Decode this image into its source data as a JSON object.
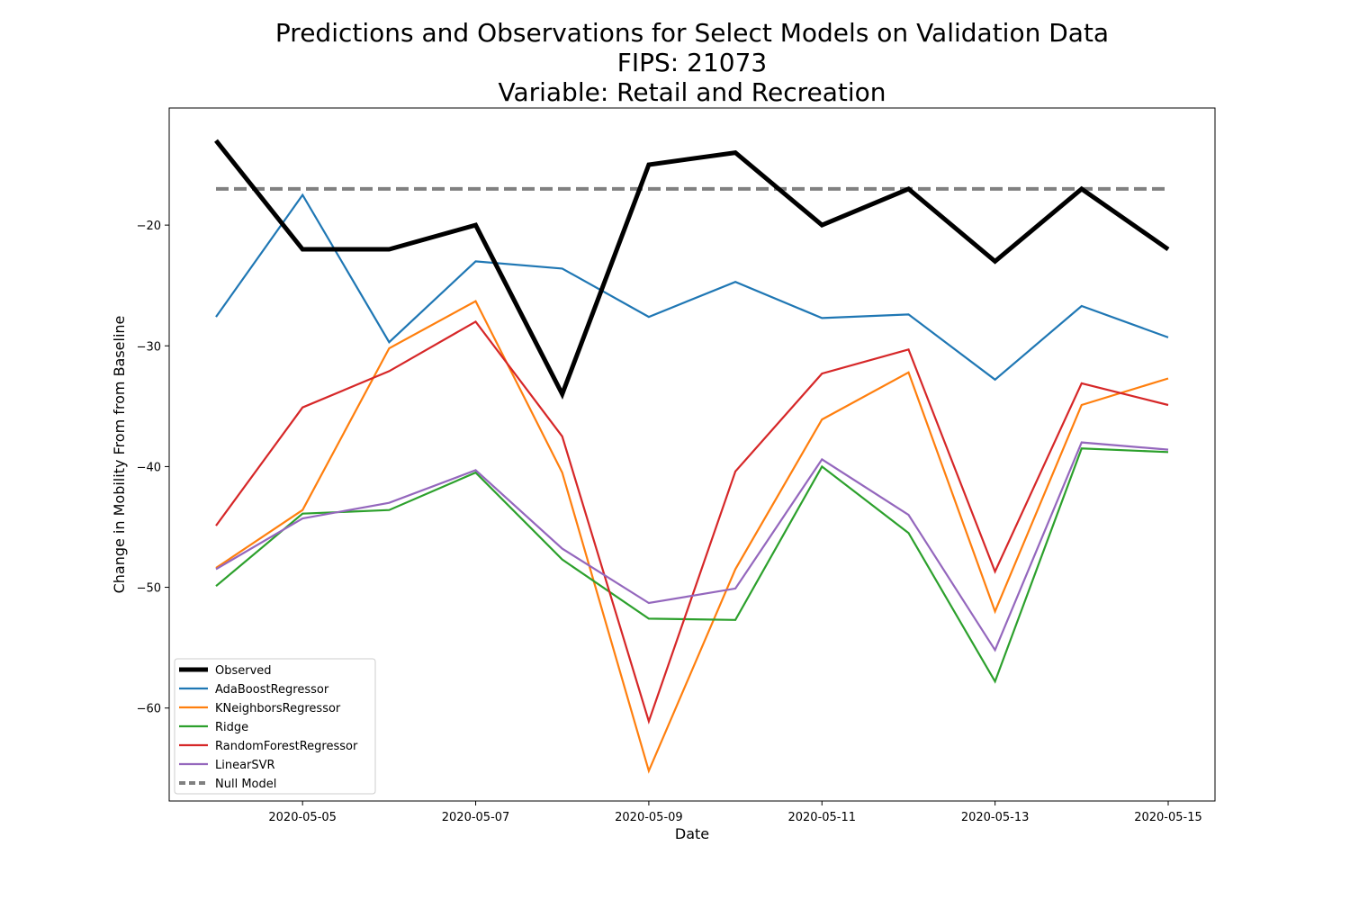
{
  "chart_data": {
    "type": "line",
    "title_lines": [
      "Predictions and Observations for Select Models on Validation Data",
      "FIPS: 21073",
      "Variable: Retail and Recreation"
    ],
    "xlabel": "Date",
    "ylabel": "Change in Mobility From from Baseline",
    "x": [
      "2020-05-04",
      "2020-05-05",
      "2020-05-06",
      "2020-05-07",
      "2020-05-08",
      "2020-05-09",
      "2020-05-10",
      "2020-05-11",
      "2020-05-12",
      "2020-05-13",
      "2020-05-14",
      "2020-05-15"
    ],
    "x_ticks": [
      "2020-05-05",
      "2020-05-07",
      "2020-05-09",
      "2020-05-11",
      "2020-05-13",
      "2020-05-15"
    ],
    "y_ticks": [
      -20,
      -30,
      -40,
      -50,
      -60
    ],
    "ylim": [
      -67.7,
      -10.3
    ],
    "grid": false,
    "legend_position": "lower-left",
    "series": [
      {
        "name": "Observed",
        "color": "#000000",
        "style": "solid-thick",
        "values": [
          -13,
          -22,
          -22,
          -20,
          -34,
          -15,
          -14,
          -20,
          -17,
          -23,
          -17,
          -22
        ]
      },
      {
        "name": "AdaBoostRegressor",
        "color": "#1f77b4",
        "style": "solid",
        "values": [
          -27.6,
          -17.5,
          -29.7,
          -23,
          -23.6,
          -27.6,
          -24.7,
          -27.7,
          -27.4,
          -32.8,
          -26.7,
          -29.3
        ]
      },
      {
        "name": "KNeighborsRegressor",
        "color": "#ff7f0e",
        "style": "solid",
        "values": [
          -48.4,
          -43.6,
          -30.2,
          -26.3,
          -40.5,
          -65.2,
          -48.5,
          -36.1,
          -32.2,
          -52,
          -34.9,
          -32.7
        ]
      },
      {
        "name": "Ridge",
        "color": "#2ca02c",
        "style": "solid",
        "values": [
          -49.9,
          -43.9,
          -43.6,
          -40.5,
          -47.7,
          -52.6,
          -52.7,
          -40,
          -45.5,
          -57.8,
          -38.5,
          -38.8
        ]
      },
      {
        "name": "RandomForestRegressor",
        "color": "#d62728",
        "style": "solid",
        "values": [
          -44.9,
          -35.1,
          -32.1,
          -28,
          -37.5,
          -61.1,
          -40.4,
          -32.3,
          -30.3,
          -48.7,
          -33.1,
          -34.9
        ]
      },
      {
        "name": "LinearSVR",
        "color": "#9467bd",
        "style": "solid",
        "values": [
          -48.5,
          -44.3,
          -43,
          -40.3,
          -46.8,
          -51.3,
          -50.1,
          -39.4,
          -44,
          -55.2,
          -38,
          -38.6
        ]
      },
      {
        "name": "Null Model",
        "color": "#808080",
        "style": "dashed",
        "values": [
          -17,
          -17,
          -17,
          -17,
          -17,
          -17,
          -17,
          -17,
          -17,
          -17,
          -17,
          -17
        ]
      }
    ]
  }
}
